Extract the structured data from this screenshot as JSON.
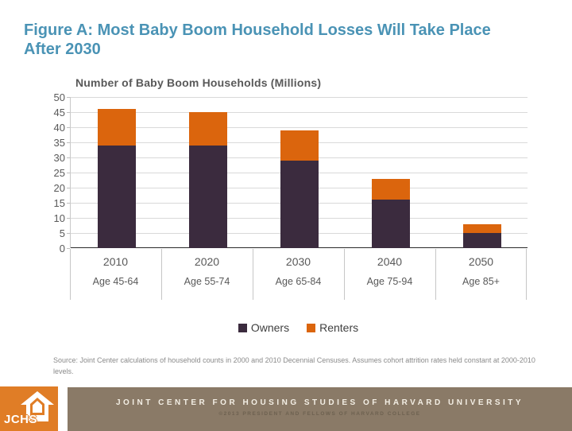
{
  "slide": {
    "title": "Figure A: Most Baby Boom Household Losses Will Take Place After 2030"
  },
  "chart_data": {
    "type": "bar",
    "stacked": true,
    "title": "Number of Baby Boom Households (Millions)",
    "categories": [
      "2010",
      "2020",
      "2030",
      "2040",
      "2050"
    ],
    "category_sublabels": [
      "Age 45-64",
      "Age 55-74",
      "Age 65-84",
      "Age 75-94",
      "Age 85+"
    ],
    "series": [
      {
        "name": "Owners",
        "color": "#3B2B3E",
        "values": [
          34,
          34,
          29,
          16,
          5
        ]
      },
      {
        "name": "Renters",
        "color": "#DB650D",
        "values": [
          12,
          11,
          10,
          7,
          3
        ]
      }
    ],
    "totals": [
      46,
      45,
      39,
      23,
      8
    ],
    "ylim": [
      0,
      50
    ],
    "yticks": [
      0,
      5,
      10,
      15,
      20,
      25,
      30,
      35,
      40,
      45,
      50
    ],
    "grid": "horizontal",
    "legend_position": "bottom"
  },
  "source_note": "Source: Joint Center calculations of household counts in 2000 and 2010 Decennial Censuses. Assumes cohort attrition rates held constant at 2000-2010 levels.",
  "footer": {
    "logo_text": "JCHS",
    "org_name": "JOINT CENTER FOR HOUSING STUDIES OF HARVARD UNIVERSITY",
    "copyright": "©2013 PRESIDENT AND FELLOWS OF HARVARD COLLEGE"
  },
  "colors": {
    "title_teal": "#4A93B5",
    "owners": "#3B2B3E",
    "renters": "#DB650D",
    "gridline": "#D9D9D9",
    "axis_text": "#595959",
    "footer_bar": "#8A7A67",
    "logo_orange": "#E07D26"
  }
}
